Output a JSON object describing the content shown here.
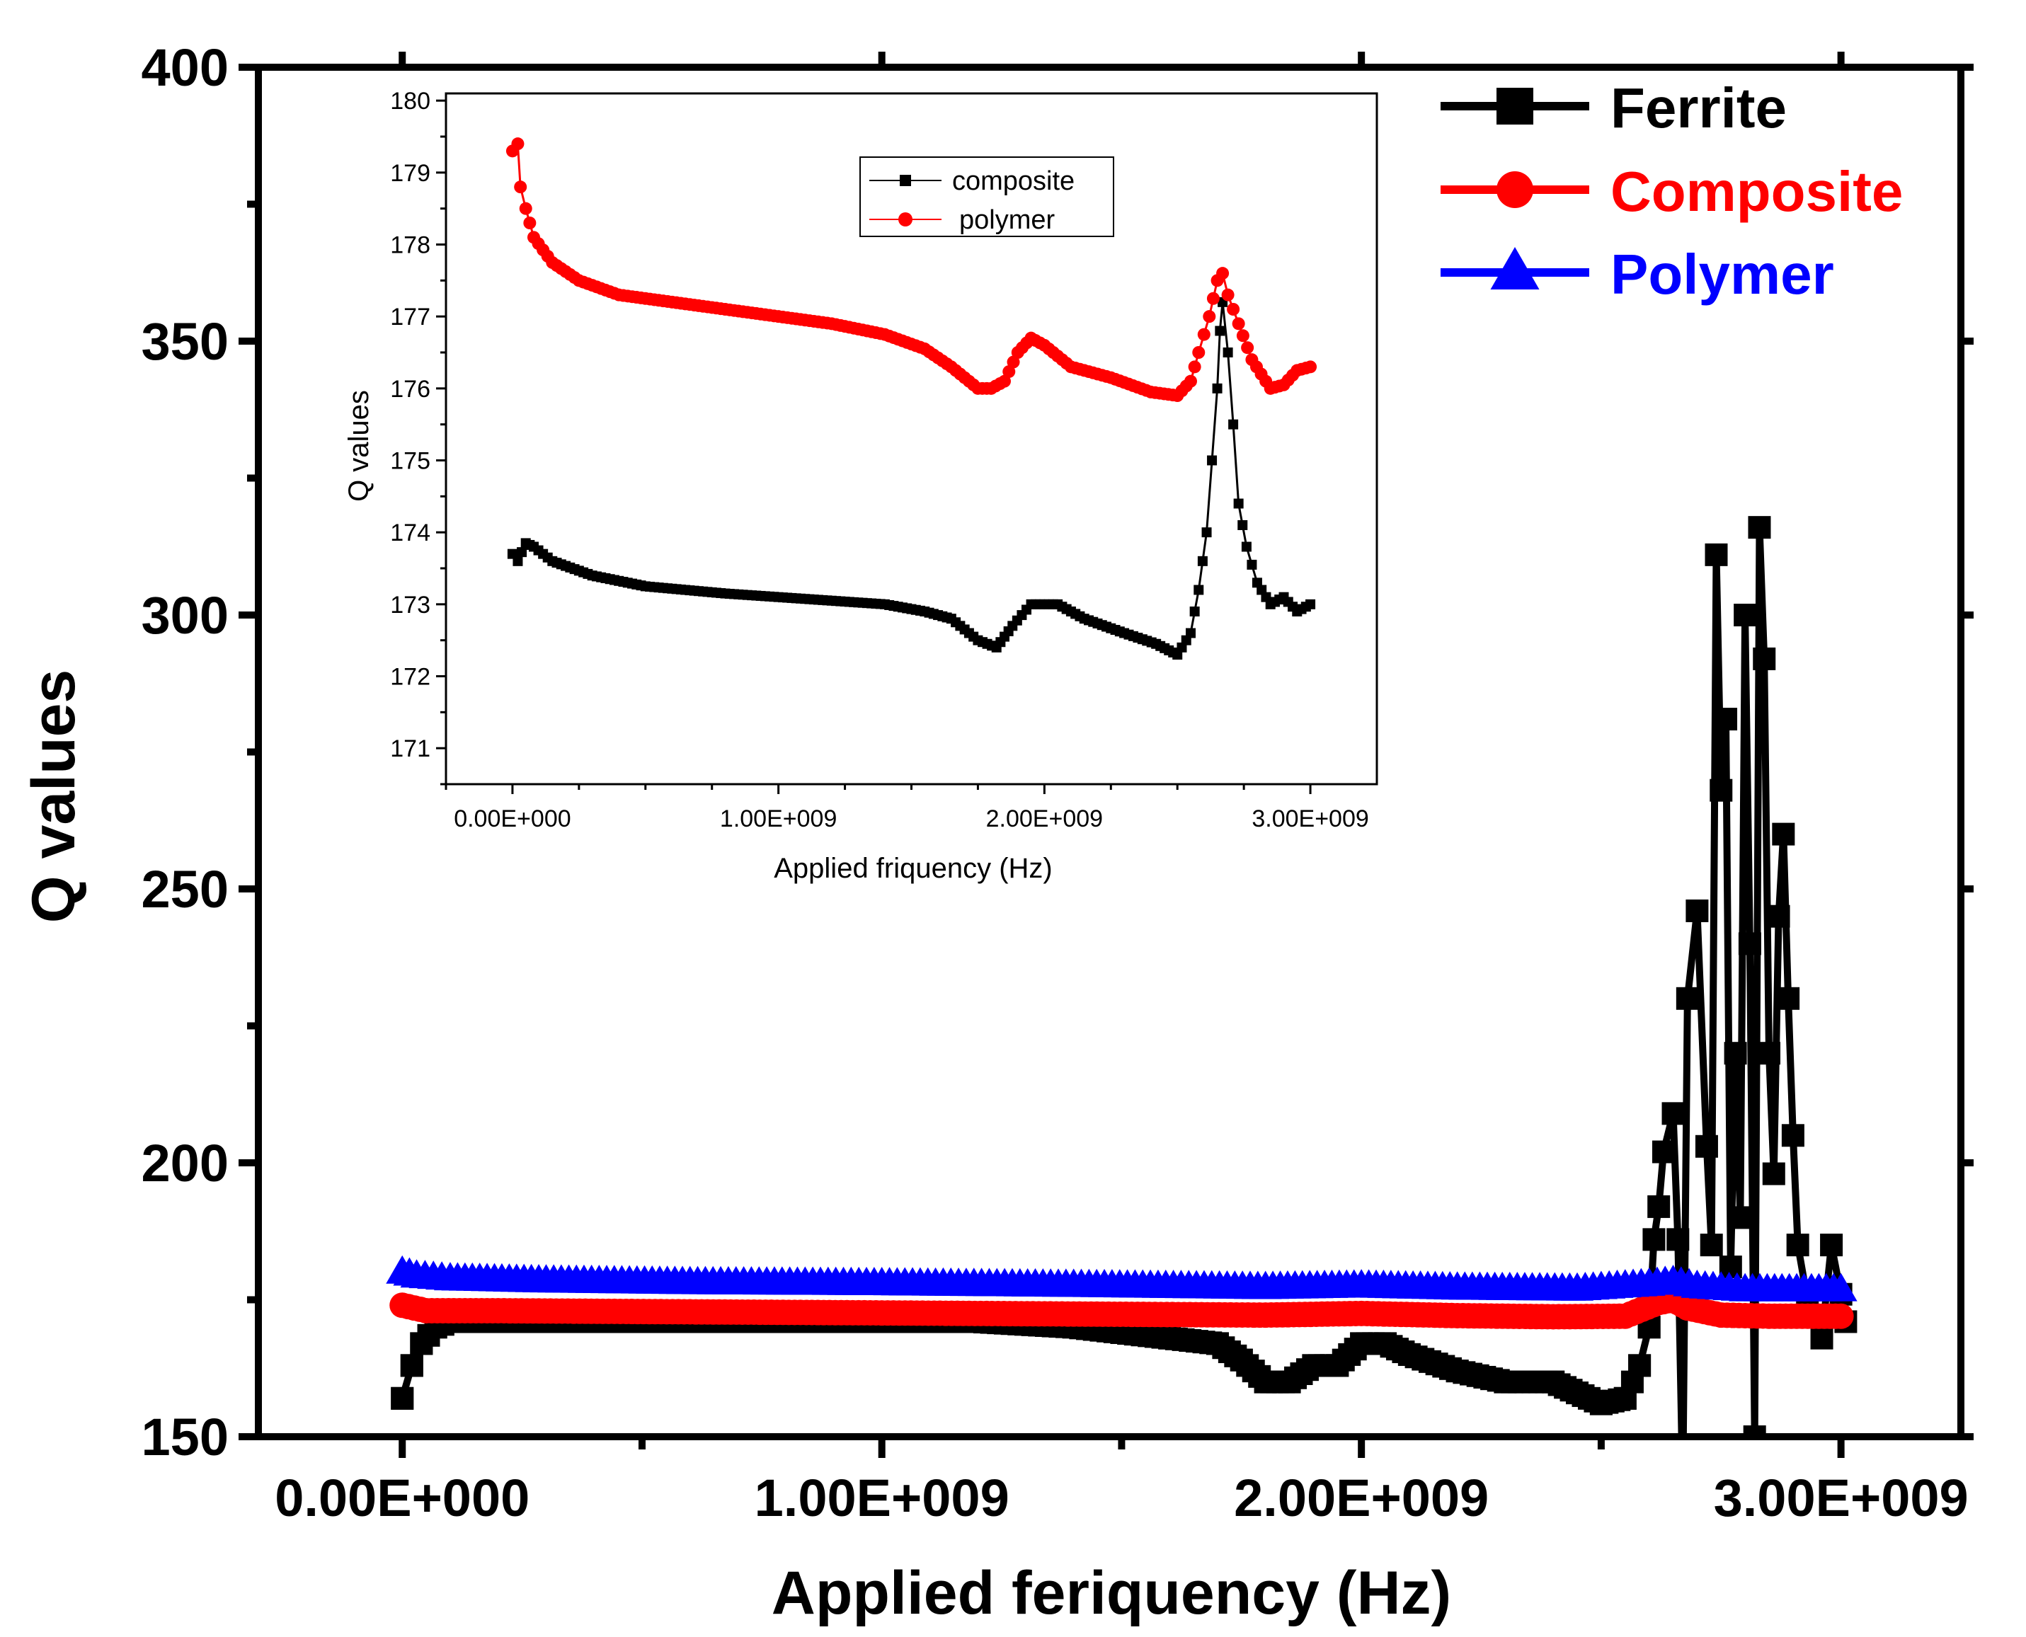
{
  "chart_data": [
    {
      "type": "line",
      "role": "main",
      "title": "",
      "xlabel": "Applied feriquency (Hz)",
      "ylabel": "Q values",
      "xlim": [
        -300000000,
        3250000000
      ],
      "ylim": [
        150,
        400
      ],
      "xticks": [
        0,
        1000000000,
        2000000000,
        3000000000
      ],
      "xtick_labels": [
        "0.00E+000",
        "1.00E+009",
        "2.00E+009",
        "3.00E+009"
      ],
      "yticks": [
        150,
        200,
        250,
        300,
        350,
        400
      ],
      "ytick_labels": [
        "150",
        "200",
        "250",
        "300",
        "350",
        "400"
      ],
      "legend_position": "top-right",
      "series": [
        {
          "name": "Ferrite",
          "color": "#000000",
          "marker": "square",
          "points": [
            [
              0,
              157
            ],
            [
              20000000,
              163
            ],
            [
              40000000,
              167
            ],
            [
              70000000,
              170
            ],
            [
              100000000,
              171
            ],
            [
              200000000,
              171
            ],
            [
              400000000,
              171
            ],
            [
              600000000,
              171
            ],
            [
              800000000,
              171
            ],
            [
              1000000000,
              171
            ],
            [
              1200000000,
              171
            ],
            [
              1400000000,
              170
            ],
            [
              1500000000,
              169
            ],
            [
              1600000000,
              168
            ],
            [
              1700000000,
              167
            ],
            [
              1750000000,
              164
            ],
            [
              1800000000,
              160
            ],
            [
              1850000000,
              160
            ],
            [
              1900000000,
              163
            ],
            [
              1950000000,
              163
            ],
            [
              2000000000,
              167
            ],
            [
              2050000000,
              167
            ],
            [
              2100000000,
              165
            ],
            [
              2200000000,
              162
            ],
            [
              2300000000,
              160
            ],
            [
              2400000000,
              160
            ],
            [
              2450000000,
              158
            ],
            [
              2500000000,
              156
            ],
            [
              2550000000,
              157
            ],
            [
              2580000000,
              163
            ],
            [
              2600000000,
              170
            ],
            [
              2610000000,
              186
            ],
            [
              2620000000,
              192
            ],
            [
              2630000000,
              202
            ],
            [
              2650000000,
              209
            ],
            [
              2660000000,
              186
            ],
            [
              2670000000,
              140
            ],
            [
              2680000000,
              230
            ],
            [
              2700000000,
              246
            ],
            [
              2720000000,
              203
            ],
            [
              2730000000,
              185
            ],
            [
              2740000000,
              311
            ],
            [
              2750000000,
              268
            ],
            [
              2760000000,
              281
            ],
            [
              2770000000,
              181
            ],
            [
              2780000000,
              220
            ],
            [
              2790000000,
              190
            ],
            [
              2800000000,
              300
            ],
            [
              2810000000,
              240
            ],
            [
              2820000000,
              150
            ],
            [
              2830000000,
              316
            ],
            [
              2840000000,
              292
            ],
            [
              2850000000,
              220
            ],
            [
              2860000000,
              198
            ],
            [
              2870000000,
              245
            ],
            [
              2880000000,
              260
            ],
            [
              2890000000,
              230
            ],
            [
              2900000000,
              205
            ],
            [
              2910000000,
              185
            ],
            [
              2930000000,
              175
            ],
            [
              2960000000,
              168
            ],
            [
              2980000000,
              185
            ],
            [
              3000000000,
              176
            ],
            [
              3010000000,
              171
            ]
          ]
        },
        {
          "name": "Composite",
          "color": "#ff0000",
          "marker": "circle",
          "points": [
            [
              0,
              174
            ],
            [
              50000000,
              173
            ],
            [
              200000000,
              173
            ],
            [
              600000000,
              172.8
            ],
            [
              1000000000,
              172.6
            ],
            [
              1400000000,
              172.4
            ],
            [
              1800000000,
              172.2
            ],
            [
              2000000000,
              172.5
            ],
            [
              2200000000,
              172.1
            ],
            [
              2400000000,
              171.9
            ],
            [
              2550000000,
              172
            ],
            [
              2620000000,
              174.5
            ],
            [
              2650000000,
              175
            ],
            [
              2680000000,
              173.5
            ],
            [
              2750000000,
              172.2
            ],
            [
              2850000000,
              172
            ],
            [
              3000000000,
              172
            ]
          ]
        },
        {
          "name": "Polymer",
          "color": "#0000ff",
          "marker": "triangle",
          "points": [
            [
              0,
              180
            ],
            [
              30000000,
              179.3
            ],
            [
              100000000,
              178.8
            ],
            [
              300000000,
              178.4
            ],
            [
              600000000,
              178.1
            ],
            [
              1000000000,
              177.9
            ],
            [
              1400000000,
              177.6
            ],
            [
              1800000000,
              177.2
            ],
            [
              2000000000,
              177.5
            ],
            [
              2200000000,
              177.1
            ],
            [
              2450000000,
              176.9
            ],
            [
              2600000000,
              177.8
            ],
            [
              2650000000,
              178.3
            ],
            [
              2700000000,
              177.4
            ],
            [
              2800000000,
              176.8
            ],
            [
              3000000000,
              176.8
            ]
          ]
        }
      ]
    },
    {
      "type": "line",
      "role": "inset",
      "title": "",
      "xlabel": "Applied friquency (Hz)",
      "ylabel": "Q values",
      "xlim": [
        -250000000,
        3250000000
      ],
      "ylim": [
        170.5,
        180.1
      ],
      "xticks": [
        0,
        1000000000,
        2000000000,
        3000000000
      ],
      "xtick_labels": [
        "0.00E+000",
        "1.00E+009",
        "2.00E+009",
        "3.00E+009"
      ],
      "yticks": [
        171,
        172,
        173,
        174,
        175,
        176,
        177,
        178,
        179,
        180
      ],
      "ytick_labels": [
        "171",
        "172",
        "173",
        "174",
        "175",
        "176",
        "177",
        "178",
        "179",
        "180"
      ],
      "legend_position": "top-center",
      "series": [
        {
          "name": "composite",
          "color": "#000000",
          "marker": "square",
          "points": [
            [
              0,
              173.7
            ],
            [
              20000000,
              173.6
            ],
            [
              50000000,
              173.85
            ],
            [
              80000000,
              173.8
            ],
            [
              150000000,
              173.6
            ],
            [
              300000000,
              173.4
            ],
            [
              500000000,
              173.25
            ],
            [
              800000000,
              173.15
            ],
            [
              1000000000,
              173.1
            ],
            [
              1200000000,
              173.05
            ],
            [
              1400000000,
              173.0
            ],
            [
              1550000000,
              172.9
            ],
            [
              1650000000,
              172.8
            ],
            [
              1750000000,
              172.5
            ],
            [
              1820000000,
              172.4
            ],
            [
              1880000000,
              172.7
            ],
            [
              1950000000,
              173.0
            ],
            [
              2050000000,
              173.0
            ],
            [
              2150000000,
              172.8
            ],
            [
              2300000000,
              172.6
            ],
            [
              2420000000,
              172.45
            ],
            [
              2500000000,
              172.3
            ],
            [
              2550000000,
              172.6
            ],
            [
              2580000000,
              173.2
            ],
            [
              2610000000,
              174.0
            ],
            [
              2630000000,
              175.0
            ],
            [
              2650000000,
              176.0
            ],
            [
              2660000000,
              176.8
            ],
            [
              2670000000,
              177.2
            ],
            [
              2690000000,
              176.5
            ],
            [
              2710000000,
              175.5
            ],
            [
              2730000000,
              174.4
            ],
            [
              2760000000,
              173.8
            ],
            [
              2800000000,
              173.3
            ],
            [
              2850000000,
              173.0
            ],
            [
              2900000000,
              173.1
            ],
            [
              2950000000,
              172.9
            ],
            [
              3000000000,
              173.0
            ]
          ]
        },
        {
          "name": "polymer",
          "color": "#ff0000",
          "marker": "circle",
          "points": [
            [
              0,
              179.3
            ],
            [
              20000000,
              179.4
            ],
            [
              30000000,
              178.8
            ],
            [
              50000000,
              178.5
            ],
            [
              80000000,
              178.1
            ],
            [
              150000000,
              177.75
            ],
            [
              250000000,
              177.5
            ],
            [
              400000000,
              177.3
            ],
            [
              600000000,
              177.2
            ],
            [
              800000000,
              177.1
            ],
            [
              1000000000,
              177.0
            ],
            [
              1200000000,
              176.9
            ],
            [
              1400000000,
              176.75
            ],
            [
              1550000000,
              176.55
            ],
            [
              1650000000,
              176.3
            ],
            [
              1750000000,
              176.0
            ],
            [
              1800000000,
              176.0
            ],
            [
              1850000000,
              176.1
            ],
            [
              1900000000,
              176.5
            ],
            [
              1950000000,
              176.7
            ],
            [
              2000000000,
              176.6
            ],
            [
              2100000000,
              176.3
            ],
            [
              2250000000,
              176.15
            ],
            [
              2400000000,
              175.95
            ],
            [
              2500000000,
              175.9
            ],
            [
              2550000000,
              176.1
            ],
            [
              2580000000,
              176.5
            ],
            [
              2620000000,
              177.0
            ],
            [
              2650000000,
              177.5
            ],
            [
              2670000000,
              177.6
            ],
            [
              2690000000,
              177.3
            ],
            [
              2730000000,
              176.9
            ],
            [
              2780000000,
              176.4
            ],
            [
              2850000000,
              176.0
            ],
            [
              2900000000,
              176.05
            ],
            [
              2950000000,
              176.25
            ],
            [
              3000000000,
              176.3
            ]
          ]
        }
      ]
    }
  ]
}
